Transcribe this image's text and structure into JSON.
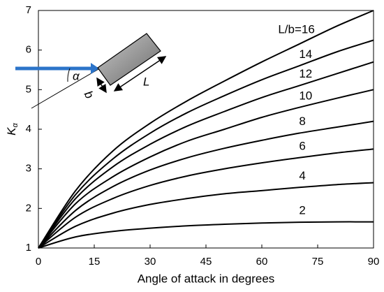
{
  "chart_data": {
    "type": "line",
    "x_label": "Angle of attack in degrees",
    "y_label": "K",
    "y_label_subscript": "α",
    "x": [
      0,
      10,
      20,
      30,
      40,
      50,
      60,
      70,
      80,
      90
    ],
    "series": [
      {
        "name": "L/b=16",
        "color": "#000000",
        "values": [
          1,
          2.45,
          3.45,
          4.15,
          4.72,
          5.22,
          5.7,
          6.15,
          6.6,
          7.0
        ]
      },
      {
        "name": "14",
        "color": "#000000",
        "values": [
          1,
          2.35,
          3.25,
          3.9,
          4.42,
          4.85,
          5.25,
          5.6,
          5.95,
          6.25
        ]
      },
      {
        "name": "12",
        "color": "#000000",
        "values": [
          1,
          2.25,
          3.05,
          3.62,
          4.08,
          4.45,
          4.8,
          5.1,
          5.4,
          5.7
        ]
      },
      {
        "name": "10",
        "color": "#000000",
        "values": [
          1,
          2.12,
          2.8,
          3.3,
          3.7,
          4.0,
          4.3,
          4.55,
          4.78,
          5.0
        ]
      },
      {
        "name": "8",
        "color": "#000000",
        "values": [
          1,
          1.95,
          2.55,
          2.97,
          3.28,
          3.52,
          3.72,
          3.9,
          4.05,
          4.2
        ]
      },
      {
        "name": "6",
        "color": "#000000",
        "values": [
          1,
          1.78,
          2.25,
          2.58,
          2.82,
          3.0,
          3.15,
          3.28,
          3.4,
          3.5
        ]
      },
      {
        "name": "4",
        "color": "#000000",
        "values": [
          1,
          1.55,
          1.88,
          2.1,
          2.25,
          2.37,
          2.45,
          2.53,
          2.6,
          2.65
        ]
      },
      {
        "name": "2",
        "color": "#000000",
        "values": [
          1,
          1.28,
          1.42,
          1.5,
          1.56,
          1.6,
          1.63,
          1.65,
          1.66,
          1.66
        ]
      }
    ],
    "xlim": [
      0,
      90
    ],
    "xticks": [
      0,
      15,
      30,
      45,
      60,
      75,
      90
    ],
    "ylim": [
      1,
      7
    ],
    "yticks": [
      1,
      2,
      3,
      4,
      5,
      6,
      7
    ],
    "grid": false,
    "annotations": [
      "α",
      "b",
      "L"
    ]
  }
}
